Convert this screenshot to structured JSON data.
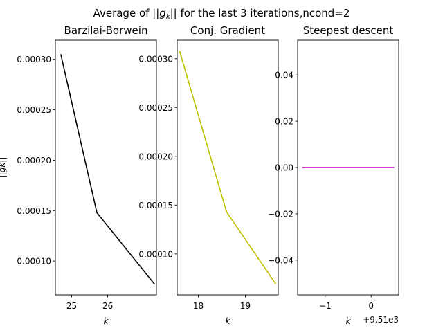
{
  "figure": {
    "suptitle_prefix": "Average of ||",
    "suptitle_g": "g",
    "suptitle_sub": "k",
    "suptitle_suffix": "|| for the last 3 iterations,ncond=2",
    "ylabel": "||gk||"
  },
  "chart_data": [
    {
      "type": "line",
      "title": "Barzilai-Borwein",
      "xlabel": "k",
      "x": [
        24.7,
        25.7,
        27.3
      ],
      "series": [
        {
          "values": [
            0.000305,
            0.000148,
            7.7e-05
          ],
          "color": "#000000"
        }
      ],
      "xlim": [
        24.55,
        27.35
      ],
      "ylim": [
        6.65e-05,
        0.000319
      ],
      "xticks": [
        25,
        26
      ],
      "xtick_labels": [
        "25",
        "26"
      ],
      "yticks": [
        0.0001,
        0.00015,
        0.0002,
        0.00025,
        0.0003
      ],
      "ytick_labels": [
        "0.00010",
        "0.00015",
        "0.00020",
        "0.00025",
        "0.00030"
      ],
      "offset_text": ""
    },
    {
      "type": "line",
      "title": "Conj. Gradient",
      "xlabel": "k",
      "x": [
        17.6,
        18.6,
        19.65
      ],
      "series": [
        {
          "values": [
            0.000308,
            0.000143,
            6.9e-05
          ],
          "color": "#bfbf00"
        }
      ],
      "xlim": [
        17.55,
        19.7
      ],
      "ylim": [
        5.8e-05,
        0.000319
      ],
      "xticks": [
        18,
        19
      ],
      "xtick_labels": [
        "18",
        "19"
      ],
      "yticks": [
        0.0001,
        0.00015,
        0.0002,
        0.00025,
        0.0003
      ],
      "ytick_labels": [
        "0.00010",
        "0.00015",
        "0.00020",
        "0.00025",
        "0.00030"
      ],
      "offset_text": ""
    },
    {
      "type": "line",
      "title": "Steepest descent",
      "xlabel": "k",
      "x": [
        -1.5,
        0.5
      ],
      "series": [
        {
          "values": [
            0.0,
            0.0
          ],
          "color": "#bf00bf"
        }
      ],
      "xlim": [
        -1.6,
        0.6
      ],
      "ylim": [
        -0.055,
        0.055
      ],
      "xticks": [
        -1,
        0
      ],
      "xtick_labels": [
        "−1",
        "0"
      ],
      "yticks": [
        -0.04,
        -0.02,
        0.0,
        0.02,
        0.04
      ],
      "ytick_labels": [
        "−0.04",
        "−0.02",
        "0.00",
        "0.02",
        "0.04"
      ],
      "offset_text": "+9.51e3"
    }
  ]
}
